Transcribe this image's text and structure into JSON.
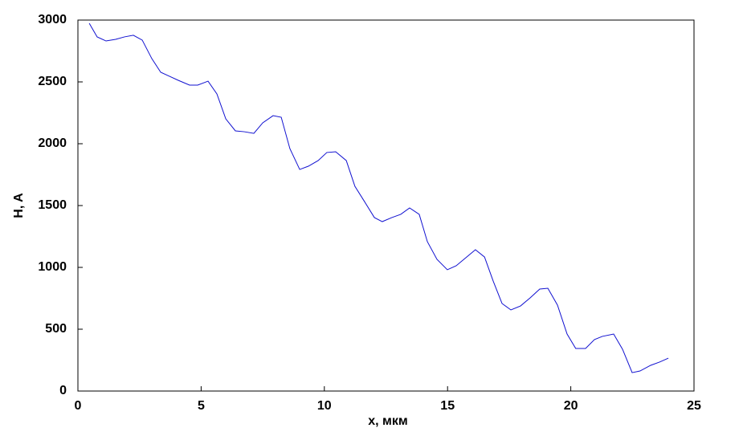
{
  "chart_data": {
    "type": "line",
    "xlabel": "x, мкм",
    "ylabel": "H, A",
    "x": [
      0.46,
      0.78,
      1.14,
      1.53,
      1.89,
      2.25,
      2.61,
      3.0,
      3.36,
      3.72,
      4.07,
      4.53,
      4.86,
      5.28,
      5.64,
      6.0,
      6.39,
      6.75,
      7.14,
      7.5,
      7.92,
      8.25,
      8.6,
      9.0,
      9.35,
      9.75,
      10.1,
      10.46,
      10.89,
      11.24,
      11.63,
      12.03,
      12.35,
      12.74,
      13.1,
      13.46,
      13.85,
      14.18,
      14.57,
      14.99,
      15.35,
      15.74,
      16.13,
      16.5,
      16.85,
      17.21,
      17.57,
      17.96,
      18.35,
      18.74,
      19.07,
      19.46,
      19.85,
      20.2,
      20.6,
      20.96,
      21.28,
      21.74,
      22.1,
      22.49,
      22.81,
      23.24,
      23.6,
      23.96
    ],
    "series": [
      {
        "color": "#1010d0",
        "values": [
          2974,
          2864,
          2831,
          2844,
          2864,
          2877,
          2838,
          2688,
          2578,
          2545,
          2513,
          2474,
          2474,
          2506,
          2403,
          2201,
          2104,
          2097,
          2084,
          2169,
          2227,
          2214,
          1961,
          1792,
          1818,
          1864,
          1929,
          1935,
          1864,
          1656,
          1532,
          1403,
          1370,
          1403,
          1429,
          1481,
          1429,
          1208,
          1065,
          981,
          1013,
          1078,
          1143,
          1084,
          890,
          708,
          656,
          688,
          753,
          825,
          831,
          695,
          461,
          344,
          344,
          416,
          442,
          461,
          338,
          149,
          162,
          208,
          234,
          266
        ]
      }
    ],
    "xlim": [
      0,
      25
    ],
    "xticks": [
      0,
      5,
      10,
      15,
      20,
      25
    ],
    "ylim": [
      0,
      3000
    ],
    "yticks": [
      0,
      500,
      1000,
      1500,
      2000,
      2500,
      3000
    ]
  }
}
